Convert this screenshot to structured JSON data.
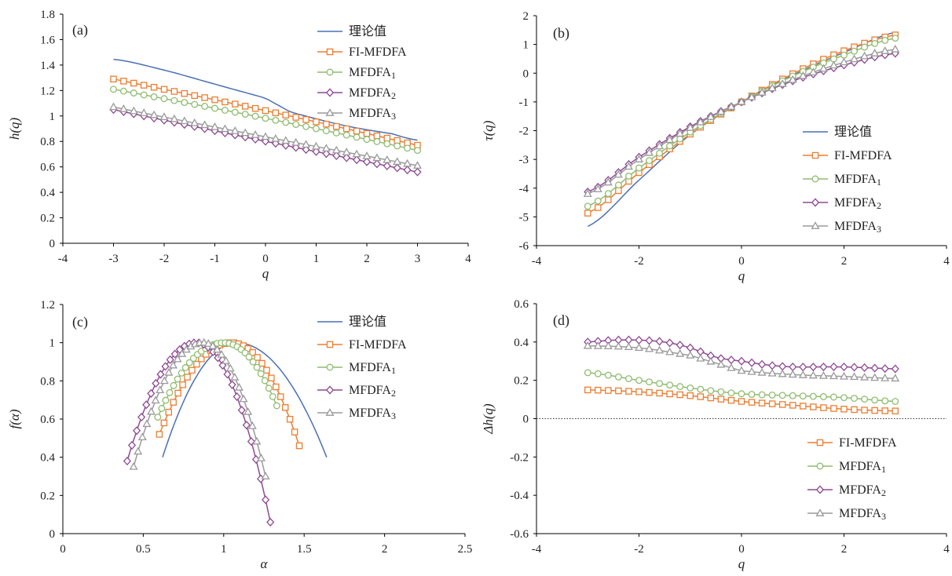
{
  "chart_data": [
    {
      "panel": "(a)",
      "type": "line",
      "xlabel": "q",
      "ylabel": "h(q)",
      "xlim": [
        -4,
        4
      ],
      "ylim": [
        0,
        1.8
      ],
      "xticks": [
        -4,
        -3,
        -2,
        -1,
        0,
        1,
        2,
        3,
        4
      ],
      "yticks": [
        0,
        0.2,
        0.4,
        0.6,
        0.8,
        1,
        1.2,
        1.4,
        1.6,
        1.8
      ],
      "legend_position": "top-right",
      "series": [
        {
          "name": "理论值",
          "key": "theory",
          "x_range": [
            -3,
            3
          ],
          "y": [
            1.445,
            1.36,
            1.25,
            1.14,
            1.03,
            0.93,
            0.86,
            0.81
          ],
          "x_samples": [
            -3,
            -2,
            -1,
            0,
            0.5,
            1.5,
            2.5,
            3
          ]
        },
        {
          "name": "FI-MFDFA",
          "key": "fi",
          "x_range": [
            -3,
            3
          ],
          "y_start": 1.29,
          "y_end": 0.77
        },
        {
          "name": "MFDFA1",
          "key": "m1",
          "x_range": [
            -3,
            3
          ],
          "y_start": 1.21,
          "y_end": 0.73
        },
        {
          "name": "MFDFA2",
          "key": "m2",
          "x_range": [
            -3,
            3
          ],
          "y_start": 1.05,
          "y_end": 0.56
        },
        {
          "name": "MFDFA3",
          "key": "m3",
          "x_range": [
            -3,
            3
          ],
          "y_start": 1.07,
          "y_end": 0.61
        }
      ]
    },
    {
      "panel": "(b)",
      "type": "line",
      "xlabel": "q",
      "ylabel": "τ(q)",
      "xlim": [
        -4,
        4
      ],
      "ylim": [
        -6,
        2
      ],
      "xticks": [
        -4,
        -2,
        0,
        2,
        4
      ],
      "yticks": [
        -6,
        -5,
        -4,
        -3,
        -2,
        -1,
        0,
        1,
        2
      ],
      "legend_position": "bottom-right",
      "series": [
        {
          "name": "理论值",
          "key": "theory",
          "x": [
            -3,
            -2,
            -1,
            0,
            1,
            2,
            3
          ],
          "y": [
            -5.33,
            -3.72,
            -2.14,
            -1.0,
            -0.07,
            0.72,
            1.42
          ]
        },
        {
          "name": "FI-MFDFA",
          "key": "fi",
          "x": [
            -3,
            -2,
            -1,
            0,
            1,
            2,
            3
          ],
          "y": [
            -4.87,
            -3.46,
            -2.12,
            -1.0,
            -0.02,
            0.78,
            1.33
          ]
        },
        {
          "name": "MFDFA1",
          "key": "m1",
          "x": [
            -3,
            -2,
            -1,
            0,
            1,
            2,
            3
          ],
          "y": [
            -4.63,
            -3.3,
            -2.05,
            -1.0,
            -0.1,
            0.63,
            1.22
          ]
        },
        {
          "name": "MFDFA2",
          "key": "m2",
          "x": [
            -3,
            -2,
            -1,
            0,
            1,
            2,
            3
          ],
          "y": [
            -4.13,
            -2.92,
            -1.86,
            -1.0,
            -0.27,
            0.28,
            0.69
          ]
        },
        {
          "name": "MFDFA3",
          "key": "m3",
          "x": [
            -3,
            -2,
            -1,
            0,
            1,
            2,
            3
          ],
          "y": [
            -4.2,
            -3.0,
            -1.9,
            -1.0,
            -0.23,
            0.38,
            0.83
          ]
        }
      ]
    },
    {
      "panel": "(c)",
      "type": "line",
      "xlabel": "α",
      "ylabel": "f(α)",
      "xlim": [
        0,
        2.5
      ],
      "ylim": [
        0,
        1.2
      ],
      "xticks": [
        0,
        0.5,
        1,
        1.5,
        2,
        2.5
      ],
      "yticks": [
        0,
        0.2,
        0.4,
        0.6,
        0.8,
        1,
        1.2
      ],
      "legend_position": "top-right",
      "series": [
        {
          "name": "理论值",
          "key": "theory",
          "alpha_min": 0.62,
          "alpha_max": 1.64,
          "alpha_peak": 1.08,
          "f_left": 0.4,
          "f_right": 0.4
        },
        {
          "name": "FI-MFDFA",
          "key": "fi",
          "alpha_min": 0.6,
          "alpha_max": 1.47,
          "alpha_peak": 1.05,
          "f_left": 0.52,
          "f_right": 0.46
        },
        {
          "name": "MFDFA1",
          "key": "m1",
          "alpha_min": 0.59,
          "alpha_max": 1.33,
          "alpha_peak": 1.0,
          "f_left": 0.61,
          "f_right": 0.67
        },
        {
          "name": "MFDFA2",
          "key": "m2",
          "alpha_min": 0.4,
          "alpha_max": 1.29,
          "alpha_peak": 0.83,
          "f_left": 0.38,
          "f_right": 0.06
        },
        {
          "name": "MFDFA3",
          "key": "m3",
          "alpha_min": 0.44,
          "alpha_max": 1.26,
          "alpha_peak": 0.87,
          "f_left": 0.35,
          "f_right": 0.3
        }
      ]
    },
    {
      "panel": "(d)",
      "type": "line",
      "xlabel": "q",
      "ylabel": "Δh(q)",
      "xlim": [
        -4,
        4
      ],
      "ylim": [
        -0.6,
        0.6
      ],
      "xticks": [
        -4,
        -2,
        0,
        2,
        4
      ],
      "yticks": [
        -0.6,
        -0.4,
        -0.2,
        0,
        0.2,
        0.4,
        0.6
      ],
      "zero_line": "dotted",
      "legend_position": "bottom-right",
      "series": [
        {
          "name": "FI-MFDFA",
          "key": "fi",
          "x": [
            -3,
            -2,
            -1,
            0,
            1,
            2,
            3
          ],
          "y": [
            0.15,
            0.14,
            0.12,
            0.09,
            0.07,
            0.05,
            0.04
          ]
        },
        {
          "name": "MFDFA1",
          "key": "m1",
          "x": [
            -3,
            -2,
            -1,
            0,
            1,
            2,
            3
          ],
          "y": [
            0.24,
            0.2,
            0.16,
            0.13,
            0.12,
            0.11,
            0.09
          ]
        },
        {
          "name": "MFDFA2",
          "key": "m2",
          "x": [
            -3,
            -2.5,
            -2,
            -1.5,
            -1,
            -0.5,
            0,
            0.5,
            1,
            2,
            3
          ],
          "y": [
            0.4,
            0.41,
            0.41,
            0.4,
            0.37,
            0.32,
            0.3,
            0.28,
            0.27,
            0.27,
            0.26
          ]
        },
        {
          "name": "MFDFA3",
          "key": "m3",
          "x": [
            -3,
            -2,
            -1,
            -0.5,
            0,
            1,
            2,
            3
          ],
          "y": [
            0.38,
            0.37,
            0.33,
            0.29,
            0.25,
            0.23,
            0.22,
            0.21
          ]
        }
      ]
    }
  ],
  "style": {
    "colors": {
      "theory": "#4a6fb5",
      "fi": "#ed7d31",
      "m1": "#8fbc6f",
      "m2": "#8e4a92",
      "m3": "#9a9a9a",
      "axis": "#000000",
      "zero": "#333333"
    },
    "markers": {
      "theory": "none",
      "fi": "square",
      "m1": "circle",
      "m2": "diamond",
      "m3": "triangle"
    }
  }
}
